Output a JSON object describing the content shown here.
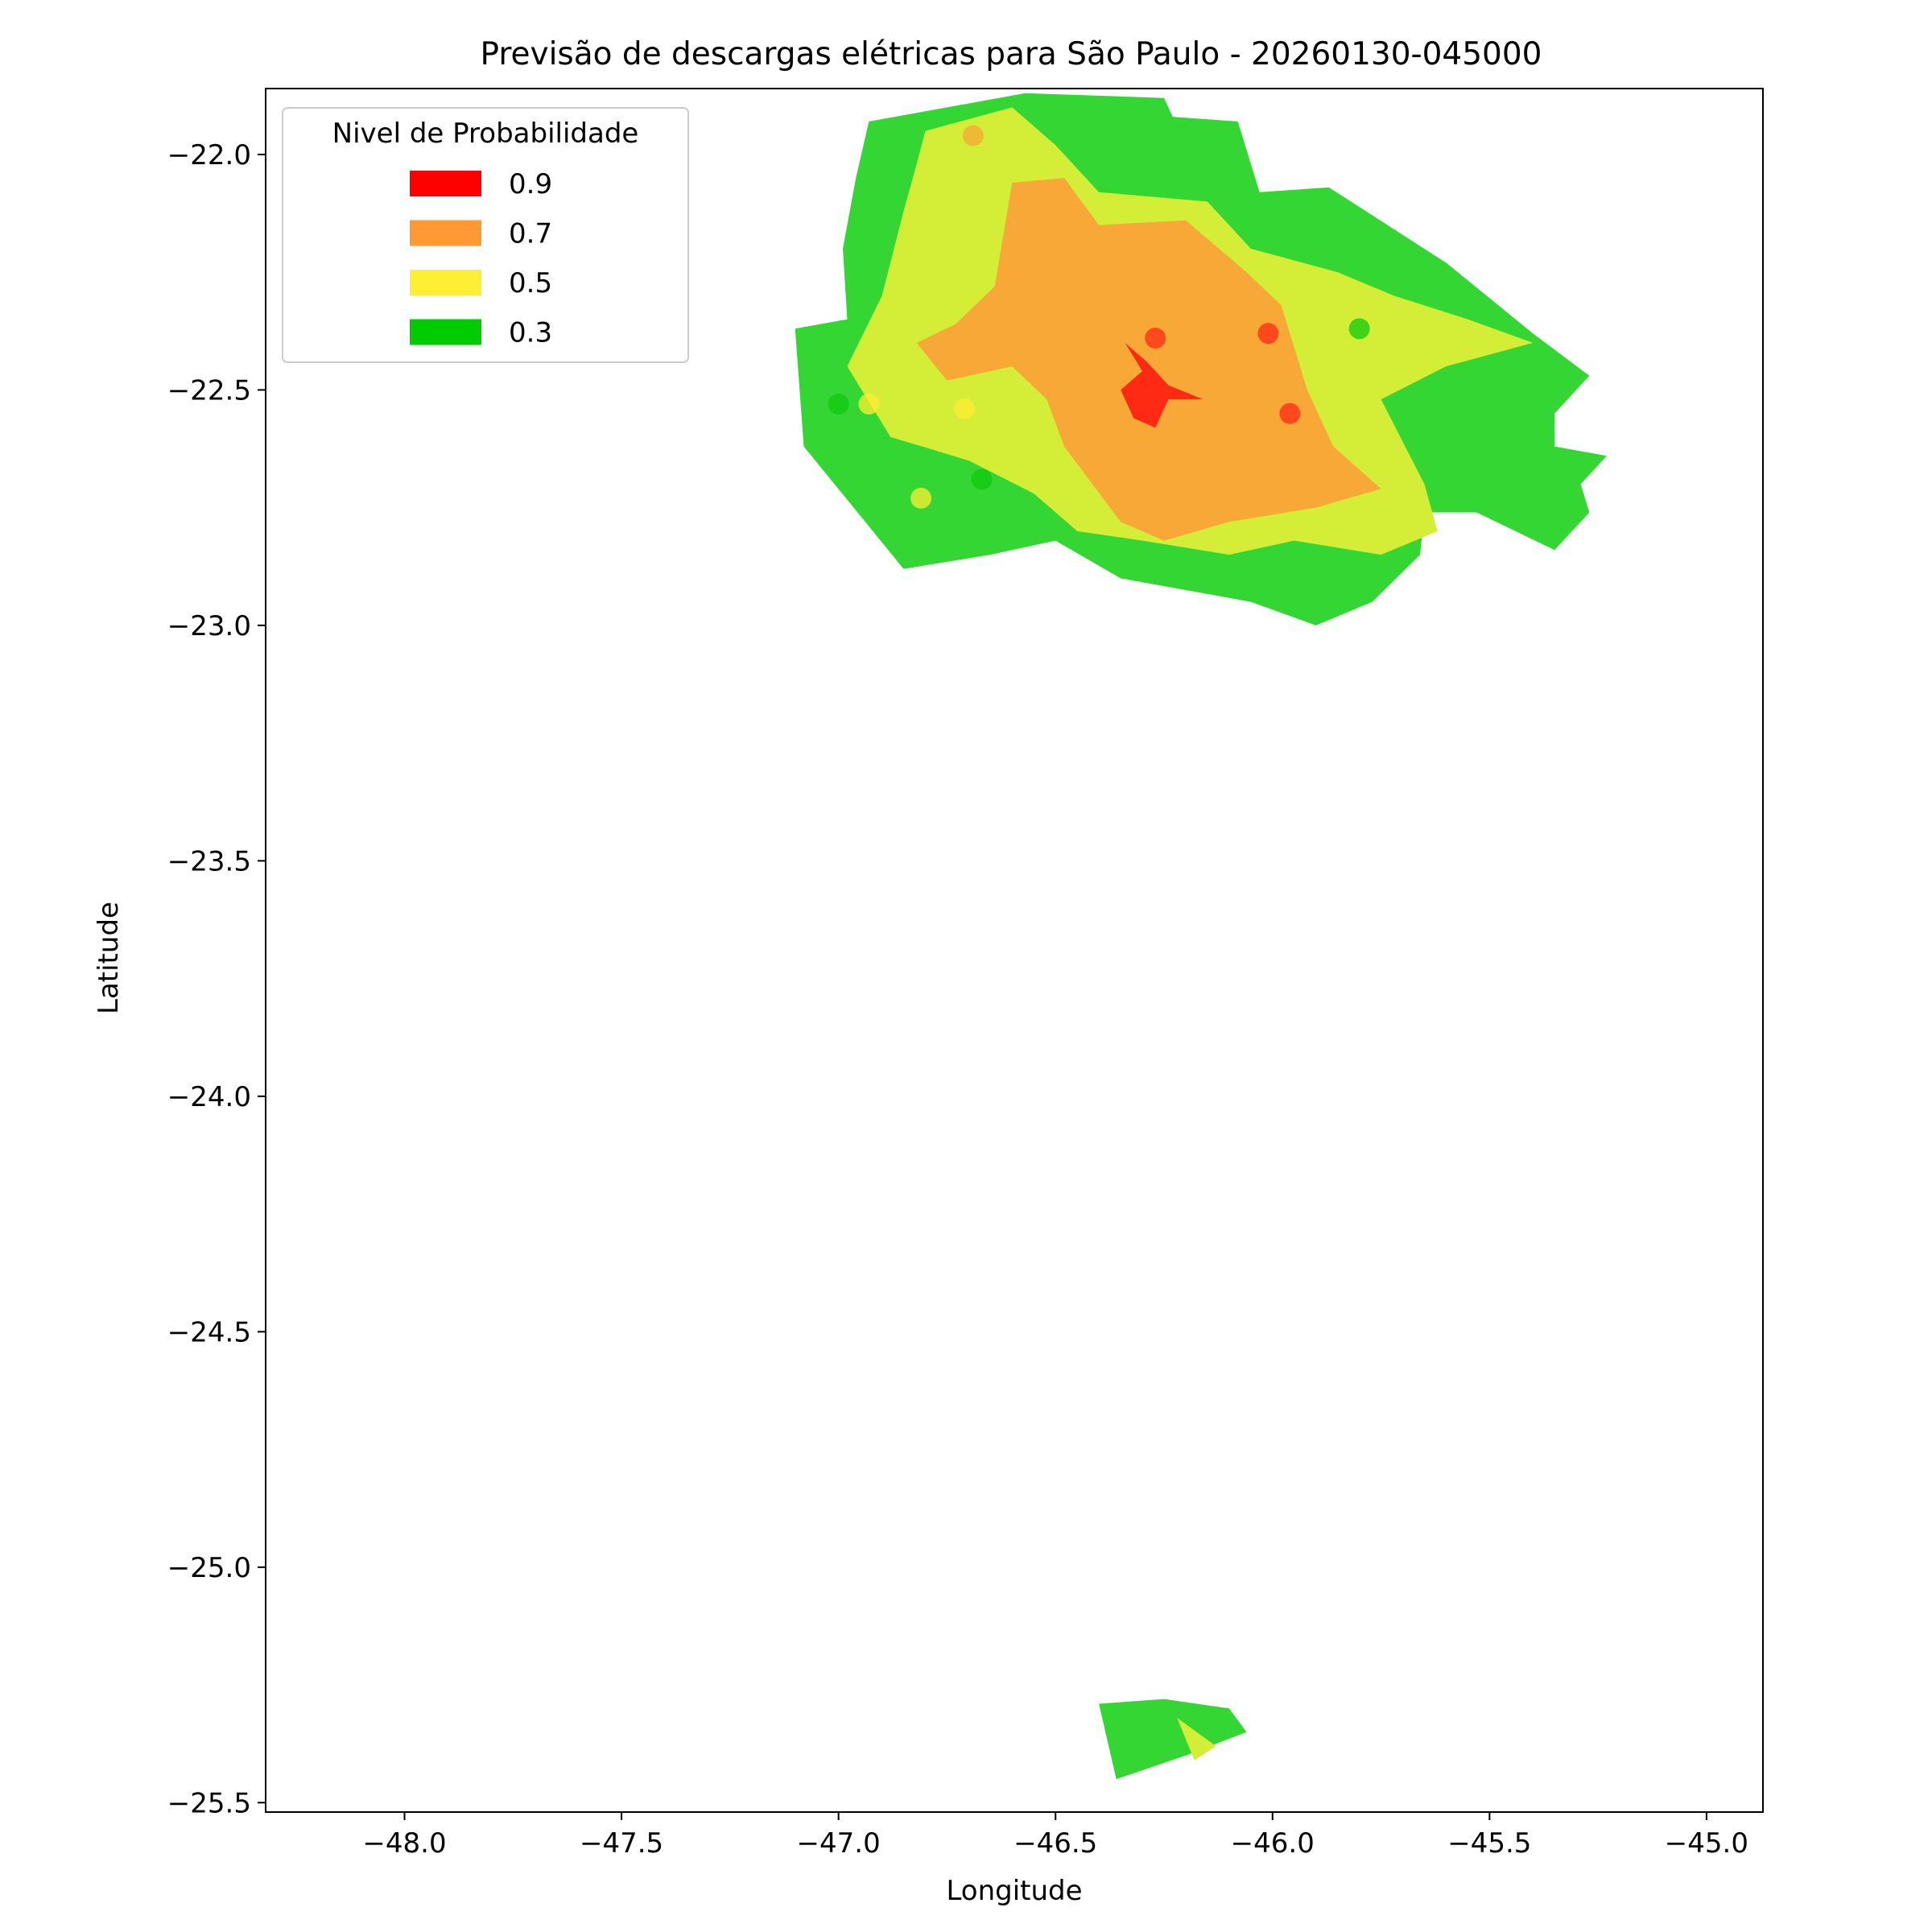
{
  "chart_data": {
    "type": "heatmap",
    "title": "Previsão de descargas elétricas para São Paulo - 20260130-045000",
    "xlabel": "Longitude",
    "ylabel": "Latitude",
    "xlim": [
      -48.32,
      -44.87
    ],
    "ylim": [
      -25.52,
      -21.86
    ],
    "xticks": [
      -48.0,
      -47.5,
      -47.0,
      -46.5,
      -46.0,
      -45.5,
      -45.0
    ],
    "yticks": [
      -22.0,
      -22.5,
      -23.0,
      -23.5,
      -24.0,
      -24.5,
      -25.0,
      -25.5
    ],
    "xtick_labels": [
      "−48.0",
      "−47.5",
      "−47.0",
      "−46.5",
      "−46.0",
      "−45.5",
      "−45.0"
    ],
    "ytick_labels": [
      "−22.0",
      "−22.5",
      "−23.0",
      "−23.5",
      "−24.0",
      "−24.5",
      "−25.0",
      "−25.5"
    ],
    "grid": false,
    "legend": {
      "title": "Nivel de Probabilidade",
      "placement": "top-left",
      "entries": [
        {
          "label": "0.9",
          "color": "#ff0000"
        },
        {
          "label": "0.7",
          "color": "#ff9933"
        },
        {
          "label": "0.5",
          "color": "#ffee33"
        },
        {
          "label": "0.3",
          "color": "#00cc00"
        }
      ]
    },
    "regions": [
      {
        "level": 0.3,
        "color": "#33d633",
        "polygon": [
          [
            -46.93,
            -21.93
          ],
          [
            -46.57,
            -21.87
          ],
          [
            -46.25,
            -21.88
          ],
          [
            -46.23,
            -21.92
          ],
          [
            -46.08,
            -21.93
          ],
          [
            -46.03,
            -22.08
          ],
          [
            -45.87,
            -22.07
          ],
          [
            -45.6,
            -22.23
          ],
          [
            -45.4,
            -22.38
          ],
          [
            -45.27,
            -22.47
          ],
          [
            -45.35,
            -22.55
          ],
          [
            -45.35,
            -22.62
          ],
          [
            -45.23,
            -22.64
          ],
          [
            -45.29,
            -22.7
          ],
          [
            -45.27,
            -22.76
          ],
          [
            -45.35,
            -22.84
          ],
          [
            -45.53,
            -22.76
          ],
          [
            -45.65,
            -22.76
          ],
          [
            -45.66,
            -22.85
          ],
          [
            -45.77,
            -22.95
          ],
          [
            -45.9,
            -23.0
          ],
          [
            -46.05,
            -22.95
          ],
          [
            -46.35,
            -22.9
          ],
          [
            -46.5,
            -22.82
          ],
          [
            -46.65,
            -22.85
          ],
          [
            -46.85,
            -22.88
          ],
          [
            -47.08,
            -22.62
          ],
          [
            -47.1,
            -22.37
          ],
          [
            -46.98,
            -22.35
          ],
          [
            -46.99,
            -22.2
          ],
          [
            -46.96,
            -22.05
          ]
        ]
      },
      {
        "level": 0.5,
        "color": "#d4ed37",
        "polygon": [
          [
            -46.8,
            -21.95
          ],
          [
            -46.6,
            -21.9
          ],
          [
            -46.5,
            -21.98
          ],
          [
            -46.4,
            -22.08
          ],
          [
            -46.15,
            -22.1
          ],
          [
            -46.05,
            -22.2
          ],
          [
            -45.85,
            -22.25
          ],
          [
            -45.72,
            -22.3
          ],
          [
            -45.55,
            -22.35
          ],
          [
            -45.4,
            -22.4
          ],
          [
            -45.6,
            -22.45
          ],
          [
            -45.75,
            -22.52
          ],
          [
            -45.65,
            -22.7
          ],
          [
            -45.62,
            -22.8
          ],
          [
            -45.75,
            -22.85
          ],
          [
            -45.95,
            -22.82
          ],
          [
            -46.1,
            -22.85
          ],
          [
            -46.3,
            -22.82
          ],
          [
            -46.45,
            -22.8
          ],
          [
            -46.55,
            -22.72
          ],
          [
            -46.7,
            -22.65
          ],
          [
            -46.88,
            -22.6
          ],
          [
            -46.98,
            -22.45
          ],
          [
            -46.9,
            -22.3
          ],
          [
            -46.85,
            -22.12
          ],
          [
            -46.82,
            -22.02
          ]
        ]
      },
      {
        "level": 0.7,
        "color": "#f7a837",
        "polygon": [
          [
            -46.6,
            -22.06
          ],
          [
            -46.48,
            -22.05
          ],
          [
            -46.4,
            -22.15
          ],
          [
            -46.2,
            -22.14
          ],
          [
            -46.06,
            -22.25
          ],
          [
            -45.98,
            -22.32
          ],
          [
            -45.92,
            -22.5
          ],
          [
            -45.86,
            -22.62
          ],
          [
            -45.75,
            -22.71
          ],
          [
            -45.9,
            -22.75
          ],
          [
            -46.1,
            -22.78
          ],
          [
            -46.25,
            -22.82
          ],
          [
            -46.35,
            -22.78
          ],
          [
            -46.48,
            -22.62
          ],
          [
            -46.52,
            -22.52
          ],
          [
            -46.6,
            -22.45
          ],
          [
            -46.75,
            -22.48
          ],
          [
            -46.82,
            -22.4
          ],
          [
            -46.73,
            -22.36
          ],
          [
            -46.64,
            -22.28
          ]
        ]
      },
      {
        "level": 0.9,
        "color": "#ff2a14",
        "polygon": [
          [
            -46.34,
            -22.4
          ],
          [
            -46.3,
            -22.46
          ],
          [
            -46.35,
            -22.5
          ],
          [
            -46.32,
            -22.56
          ],
          [
            -46.27,
            -22.58
          ],
          [
            -46.24,
            -22.52
          ],
          [
            -46.16,
            -22.52
          ],
          [
            -46.24,
            -22.49
          ],
          [
            -46.29,
            -22.44
          ]
        ]
      },
      {
        "level": 0.3,
        "color": "#33d633",
        "polygon": [
          [
            -46.4,
            -25.29
          ],
          [
            -46.25,
            -25.28
          ],
          [
            -46.1,
            -25.3
          ],
          [
            -46.06,
            -25.35
          ],
          [
            -46.2,
            -25.4
          ],
          [
            -46.36,
            -25.45
          ]
        ]
      },
      {
        "level": 0.5,
        "color": "#d4ed37",
        "polygon": [
          [
            -46.22,
            -25.32
          ],
          [
            -46.13,
            -25.38
          ],
          [
            -46.18,
            -25.41
          ]
        ]
      }
    ],
    "points": [
      {
        "x": -46.69,
        "y": -21.96,
        "color": "#f7a837"
      },
      {
        "x": -46.27,
        "y": -22.39,
        "color": "#ff2a14"
      },
      {
        "x": -46.01,
        "y": -22.38,
        "color": "#ff2a14"
      },
      {
        "x": -45.96,
        "y": -22.55,
        "color": "#ff2a14"
      },
      {
        "x": -45.8,
        "y": -22.37,
        "color": "#10c810"
      },
      {
        "x": -47.0,
        "y": -22.53,
        "color": "#10c810"
      },
      {
        "x": -46.93,
        "y": -22.53,
        "color": "#ffee33"
      },
      {
        "x": -46.71,
        "y": -22.54,
        "color": "#ffee33"
      },
      {
        "x": -46.81,
        "y": -22.73,
        "color": "#ffee33"
      },
      {
        "x": -46.67,
        "y": -22.69,
        "color": "#10c810"
      }
    ]
  }
}
